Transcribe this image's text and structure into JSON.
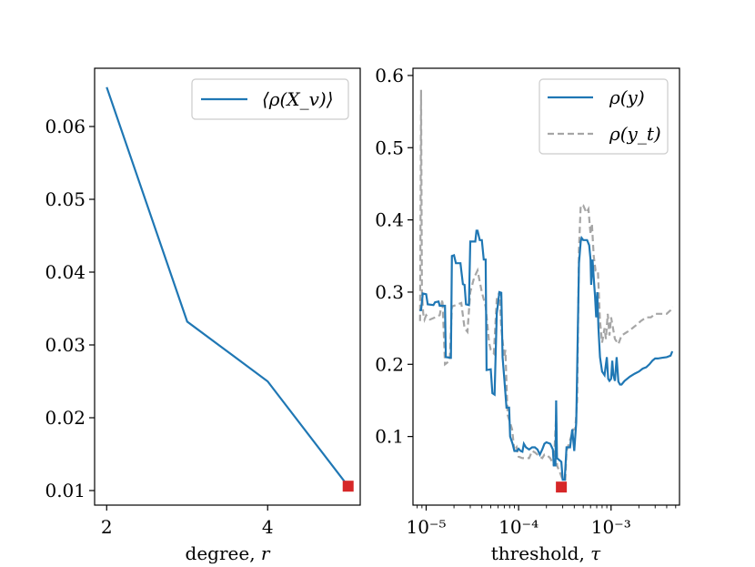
{
  "colors": {
    "blue": "#1f77b4",
    "gray": "#a6a6a6",
    "red": "#d62728"
  },
  "chart_data": [
    {
      "type": "line",
      "x": [
        2,
        3,
        4,
        5
      ],
      "values": [
        0.0654,
        0.0332,
        0.025,
        0.0106
      ],
      "marker": {
        "x": 5,
        "y": 0.0106
      },
      "xlim": [
        1.85,
        5.15
      ],
      "ylim": [
        0.008,
        0.068
      ],
      "xticks": [
        2,
        4
      ],
      "xtick_labels": [
        "2",
        "4"
      ],
      "yticks": [
        0.01,
        0.02,
        0.03,
        0.04,
        0.05,
        0.06
      ],
      "ytick_labels": [
        "0.01",
        "0.02",
        "0.03",
        "0.04",
        "0.05",
        "0.06"
      ],
      "xlabel": "degree, r",
      "legend": [
        "⟨ρ(X_v)⟩"
      ],
      "legend_position": "top-right"
    },
    {
      "type": "line",
      "xscale": "log",
      "xlim": [
        7.2e-06,
        0.0055
      ],
      "ylim": [
        0.005,
        0.61
      ],
      "xtick_labels": [
        "10⁻⁵",
        "10⁻⁴",
        "10⁻³"
      ],
      "yticks": [
        0.1,
        0.2,
        0.3,
        0.4,
        0.5,
        0.6
      ],
      "ytick_labels": [
        "0.1",
        "0.2",
        "0.3",
        "0.4",
        "0.5",
        "0.6"
      ],
      "xlabel": "threshold, τ",
      "marker": {
        "x": 0.00029,
        "y": 0.03
      },
      "legend": [
        "ρ(y)",
        "ρ(y_t)"
      ],
      "legend_position": "top-right",
      "series": [
        {
          "name": "ρ(y)",
          "points": [
            [
              8.5e-06,
              0.275
            ],
            [
              8.8e-06,
              0.275
            ],
            [
              9.2e-06,
              0.298
            ],
            [
              1e-05,
              0.297
            ],
            [
              1.04e-05,
              0.283
            ],
            [
              1.2e-05,
              0.282
            ],
            [
              1.25e-05,
              0.286
            ],
            [
              1.36e-05,
              0.287
            ],
            [
              1.4e-05,
              0.281
            ],
            [
              1.6e-05,
              0.281
            ],
            [
              1.63e-05,
              0.21
            ],
            [
              1.85e-05,
              0.209
            ],
            [
              1.9e-05,
              0.35
            ],
            [
              2e-05,
              0.351
            ],
            [
              2.1e-05,
              0.34
            ],
            [
              2.35e-05,
              0.34
            ],
            [
              2.4e-05,
              0.33
            ],
            [
              2.5e-05,
              0.311
            ],
            [
              2.6e-05,
              0.31
            ],
            [
              2.7e-05,
              0.283
            ],
            [
              2.9e-05,
              0.282
            ],
            [
              3e-05,
              0.37
            ],
            [
              3.4e-05,
              0.37
            ],
            [
              3.5e-05,
              0.385
            ],
            [
              3.6e-05,
              0.385
            ],
            [
              3.8e-05,
              0.372
            ],
            [
              4e-05,
              0.372
            ],
            [
              4.2e-05,
              0.345
            ],
            [
              4.4e-05,
              0.345
            ],
            [
              4.5e-05,
              0.192
            ],
            [
              5e-05,
              0.193
            ],
            [
              5.2e-05,
              0.16
            ],
            [
              5.5e-05,
              0.158
            ],
            [
              5.8e-05,
              0.27
            ],
            [
              6.2e-05,
              0.3
            ],
            [
              6.5e-05,
              0.299
            ],
            [
              6.7e-05,
              0.21
            ],
            [
              7e-05,
              0.18
            ],
            [
              7.4e-05,
              0.14
            ],
            [
              7.9e-05,
              0.14
            ],
            [
              8.1e-05,
              0.1
            ],
            [
              8.6e-05,
              0.09
            ],
            [
              9e-05,
              0.08
            ],
            [
              9.6e-05,
              0.08
            ],
            [
              0.0001,
              0.083
            ],
            [
              0.000105,
              0.08
            ],
            [
              0.00011,
              0.079
            ],
            [
              0.000114,
              0.09
            ],
            [
              0.00012,
              0.085
            ],
            [
              0.00013,
              0.082
            ],
            [
              0.00014,
              0.085
            ],
            [
              0.00015,
              0.085
            ],
            [
              0.00016,
              0.082
            ],
            [
              0.00017,
              0.075
            ],
            [
              0.00018,
              0.082
            ],
            [
              0.00019,
              0.09
            ],
            [
              0.0002,
              0.092
            ],
            [
              0.00022,
              0.09
            ],
            [
              0.000235,
              0.082
            ],
            [
              0.00024,
              0.06
            ],
            [
              0.00025,
              0.06
            ],
            [
              0.000255,
              0.15
            ],
            [
              0.00026,
              0.07
            ],
            [
              0.00029,
              0.065
            ],
            [
              0.0003,
              0.04
            ],
            [
              0.000315,
              0.04
            ],
            [
              0.00033,
              0.085
            ],
            [
              0.00036,
              0.085
            ],
            [
              0.00038,
              0.11
            ],
            [
              0.0004,
              0.08
            ],
            [
              0.00042,
              0.12
            ],
            [
              0.00045,
              0.34
            ],
            [
              0.00047,
              0.37
            ],
            [
              0.00048,
              0.375
            ],
            [
              0.0005,
              0.372
            ],
            [
              0.00055,
              0.372
            ],
            [
              0.00058,
              0.365
            ],
            [
              0.0006,
              0.345
            ],
            [
              0.00061,
              0.31
            ],
            [
              0.00063,
              0.345
            ],
            [
              0.00065,
              0.32
            ],
            [
              0.00067,
              0.295
            ],
            [
              0.00069,
              0.265
            ],
            [
              0.00071,
              0.3
            ],
            [
              0.00073,
              0.25
            ],
            [
              0.00076,
              0.21
            ],
            [
              0.0008,
              0.19
            ],
            [
              0.00085,
              0.185
            ],
            [
              0.00088,
              0.2
            ],
            [
              0.0009,
              0.21
            ],
            [
              0.00093,
              0.18
            ],
            [
              0.00096,
              0.177
            ],
            [
              0.001,
              0.18
            ],
            [
              0.00103,
              0.205
            ],
            [
              0.00106,
              0.185
            ],
            [
              0.0011,
              0.177
            ],
            [
              0.00115,
              0.21
            ],
            [
              0.0012,
              0.176
            ],
            [
              0.00125,
              0.172
            ],
            [
              0.0013,
              0.172
            ],
            [
              0.0014,
              0.177
            ],
            [
              0.0016,
              0.183
            ],
            [
              0.0018,
              0.187
            ],
            [
              0.002,
              0.19
            ],
            [
              0.0022,
              0.194
            ],
            [
              0.0024,
              0.196
            ],
            [
              0.0026,
              0.2
            ],
            [
              0.0028,
              0.205
            ],
            [
              0.003,
              0.208
            ],
            [
              0.0032,
              0.208
            ],
            [
              0.0036,
              0.209
            ],
            [
              0.004,
              0.21
            ],
            [
              0.0044,
              0.212
            ],
            [
              0.0046,
              0.218
            ]
          ]
        },
        {
          "name": "ρ(y_t)",
          "points": [
            [
              8.6e-06,
              0.26
            ],
            [
              8.8e-06,
              0.58
            ],
            [
              9e-06,
              0.3
            ],
            [
              9.3e-06,
              0.27
            ],
            [
              9.6e-06,
              0.262
            ],
            [
              1e-05,
              0.268
            ],
            [
              1.1e-05,
              0.262
            ],
            [
              1.25e-05,
              0.265
            ],
            [
              1.4e-05,
              0.268
            ],
            [
              1.5e-05,
              0.29
            ],
            [
              1.6e-05,
              0.2
            ],
            [
              1.8e-05,
              0.205
            ],
            [
              1.9e-05,
              0.28
            ],
            [
              2.2e-05,
              0.283
            ],
            [
              2.4e-05,
              0.285
            ],
            [
              2.6e-05,
              0.25
            ],
            [
              2.8e-05,
              0.245
            ],
            [
              3e-05,
              0.3
            ],
            [
              3.3e-05,
              0.32
            ],
            [
              3.6e-05,
              0.33
            ],
            [
              4e-05,
              0.3
            ],
            [
              4.4e-05,
              0.28
            ],
            [
              4.8e-05,
              0.23
            ],
            [
              5e-05,
              0.22
            ],
            [
              5.4e-05,
              0.215
            ],
            [
              5.8e-05,
              0.29
            ],
            [
              6.2e-05,
              0.3
            ],
            [
              6.5e-05,
              0.25
            ],
            [
              7e-05,
              0.21
            ],
            [
              7.2e-05,
              0.22
            ],
            [
              7.6e-05,
              0.13
            ],
            [
              8.5e-05,
              0.11
            ],
            [
              9e-05,
              0.08
            ],
            [
              9.5e-05,
              0.085
            ],
            [
              0.0001,
              0.072
            ],
            [
              0.00011,
              0.07
            ],
            [
              0.00012,
              0.07
            ],
            [
              0.00013,
              0.07
            ],
            [
              0.00014,
              0.08
            ],
            [
              0.00015,
              0.078
            ],
            [
              0.00017,
              0.072
            ],
            [
              0.00018,
              0.07
            ],
            [
              0.00019,
              0.075
            ],
            [
              0.0002,
              0.075
            ],
            [
              0.00022,
              0.07
            ],
            [
              0.00024,
              0.06
            ],
            [
              0.000255,
              0.13
            ],
            [
              0.00026,
              0.06
            ],
            [
              0.00028,
              0.05
            ],
            [
              0.0003,
              0.04
            ],
            [
              0.00032,
              0.04
            ],
            [
              0.00033,
              0.08
            ],
            [
              0.00036,
              0.095
            ],
            [
              0.00039,
              0.11
            ],
            [
              0.00041,
              0.11
            ],
            [
              0.00043,
              0.15
            ],
            [
              0.00045,
              0.36
            ],
            [
              0.00047,
              0.42
            ],
            [
              0.0005,
              0.42
            ],
            [
              0.00054,
              0.41
            ],
            [
              0.00057,
              0.415
            ],
            [
              0.0006,
              0.38
            ],
            [
              0.00062,
              0.395
            ],
            [
              0.00065,
              0.35
            ],
            [
              0.00068,
              0.33
            ],
            [
              0.00072,
              0.33
            ],
            [
              0.00076,
              0.26
            ],
            [
              0.0008,
              0.23
            ],
            [
              0.00085,
              0.25
            ],
            [
              0.00088,
              0.235
            ],
            [
              0.00092,
              0.27
            ],
            [
              0.00096,
              0.24
            ],
            [
              0.001,
              0.265
            ],
            [
              0.00105,
              0.25
            ],
            [
              0.0011,
              0.235
            ],
            [
              0.0012,
              0.228
            ],
            [
              0.0013,
              0.24
            ],
            [
              0.0015,
              0.245
            ],
            [
              0.0017,
              0.25
            ],
            [
              0.0019,
              0.255
            ],
            [
              0.0021,
              0.26
            ],
            [
              0.0024,
              0.265
            ],
            [
              0.0027,
              0.265
            ],
            [
              0.003,
              0.27
            ],
            [
              0.0034,
              0.27
            ],
            [
              0.004,
              0.27
            ],
            [
              0.0044,
              0.275
            ],
            [
              0.0046,
              0.28
            ]
          ]
        }
      ]
    }
  ]
}
